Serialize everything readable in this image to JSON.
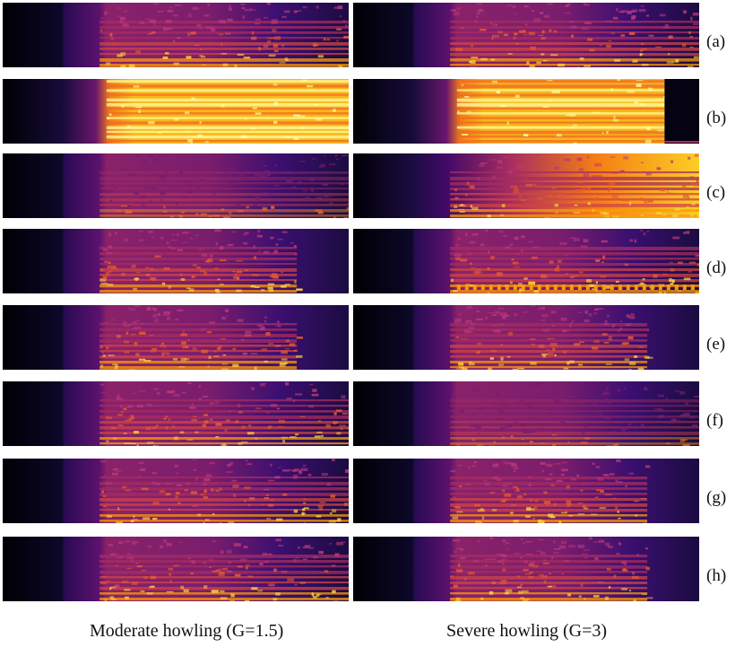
{
  "figure": {
    "rows": [
      {
        "label": "(a)",
        "left": {
          "variant": "normal"
        },
        "right": {
          "variant": "normal"
        }
      },
      {
        "label": "(b)",
        "left": {
          "variant": "blowup"
        },
        "right": {
          "variant": "blowup",
          "dark_tail": true
        }
      },
      {
        "label": "(c)",
        "left": {
          "variant": "dim"
        },
        "right": {
          "variant": "rising"
        }
      },
      {
        "label": "(d)",
        "left": {
          "variant": "faded"
        },
        "right": {
          "variant": "dotted"
        }
      },
      {
        "label": "(e)",
        "left": {
          "variant": "faded"
        },
        "right": {
          "variant": "faded"
        }
      },
      {
        "label": "(f)",
        "left": {
          "variant": "normal"
        },
        "right": {
          "variant": "dim"
        }
      },
      {
        "label": "(g)",
        "left": {
          "variant": "normal"
        },
        "right": {
          "variant": "faded"
        }
      },
      {
        "label": "(h)",
        "left": {
          "variant": "normal"
        },
        "right": {
          "variant": "faded"
        }
      }
    ],
    "captions": {
      "left": "Moderate howling (G=1.5)",
      "right": "Severe howling (G=3)"
    },
    "colormap": [
      "#000004",
      "#1b0c41",
      "#4a0c6b",
      "#781c6d",
      "#a52c60",
      "#cf4446",
      "#ed6925",
      "#fb9b06",
      "#f7d13d",
      "#fcffa4"
    ]
  }
}
